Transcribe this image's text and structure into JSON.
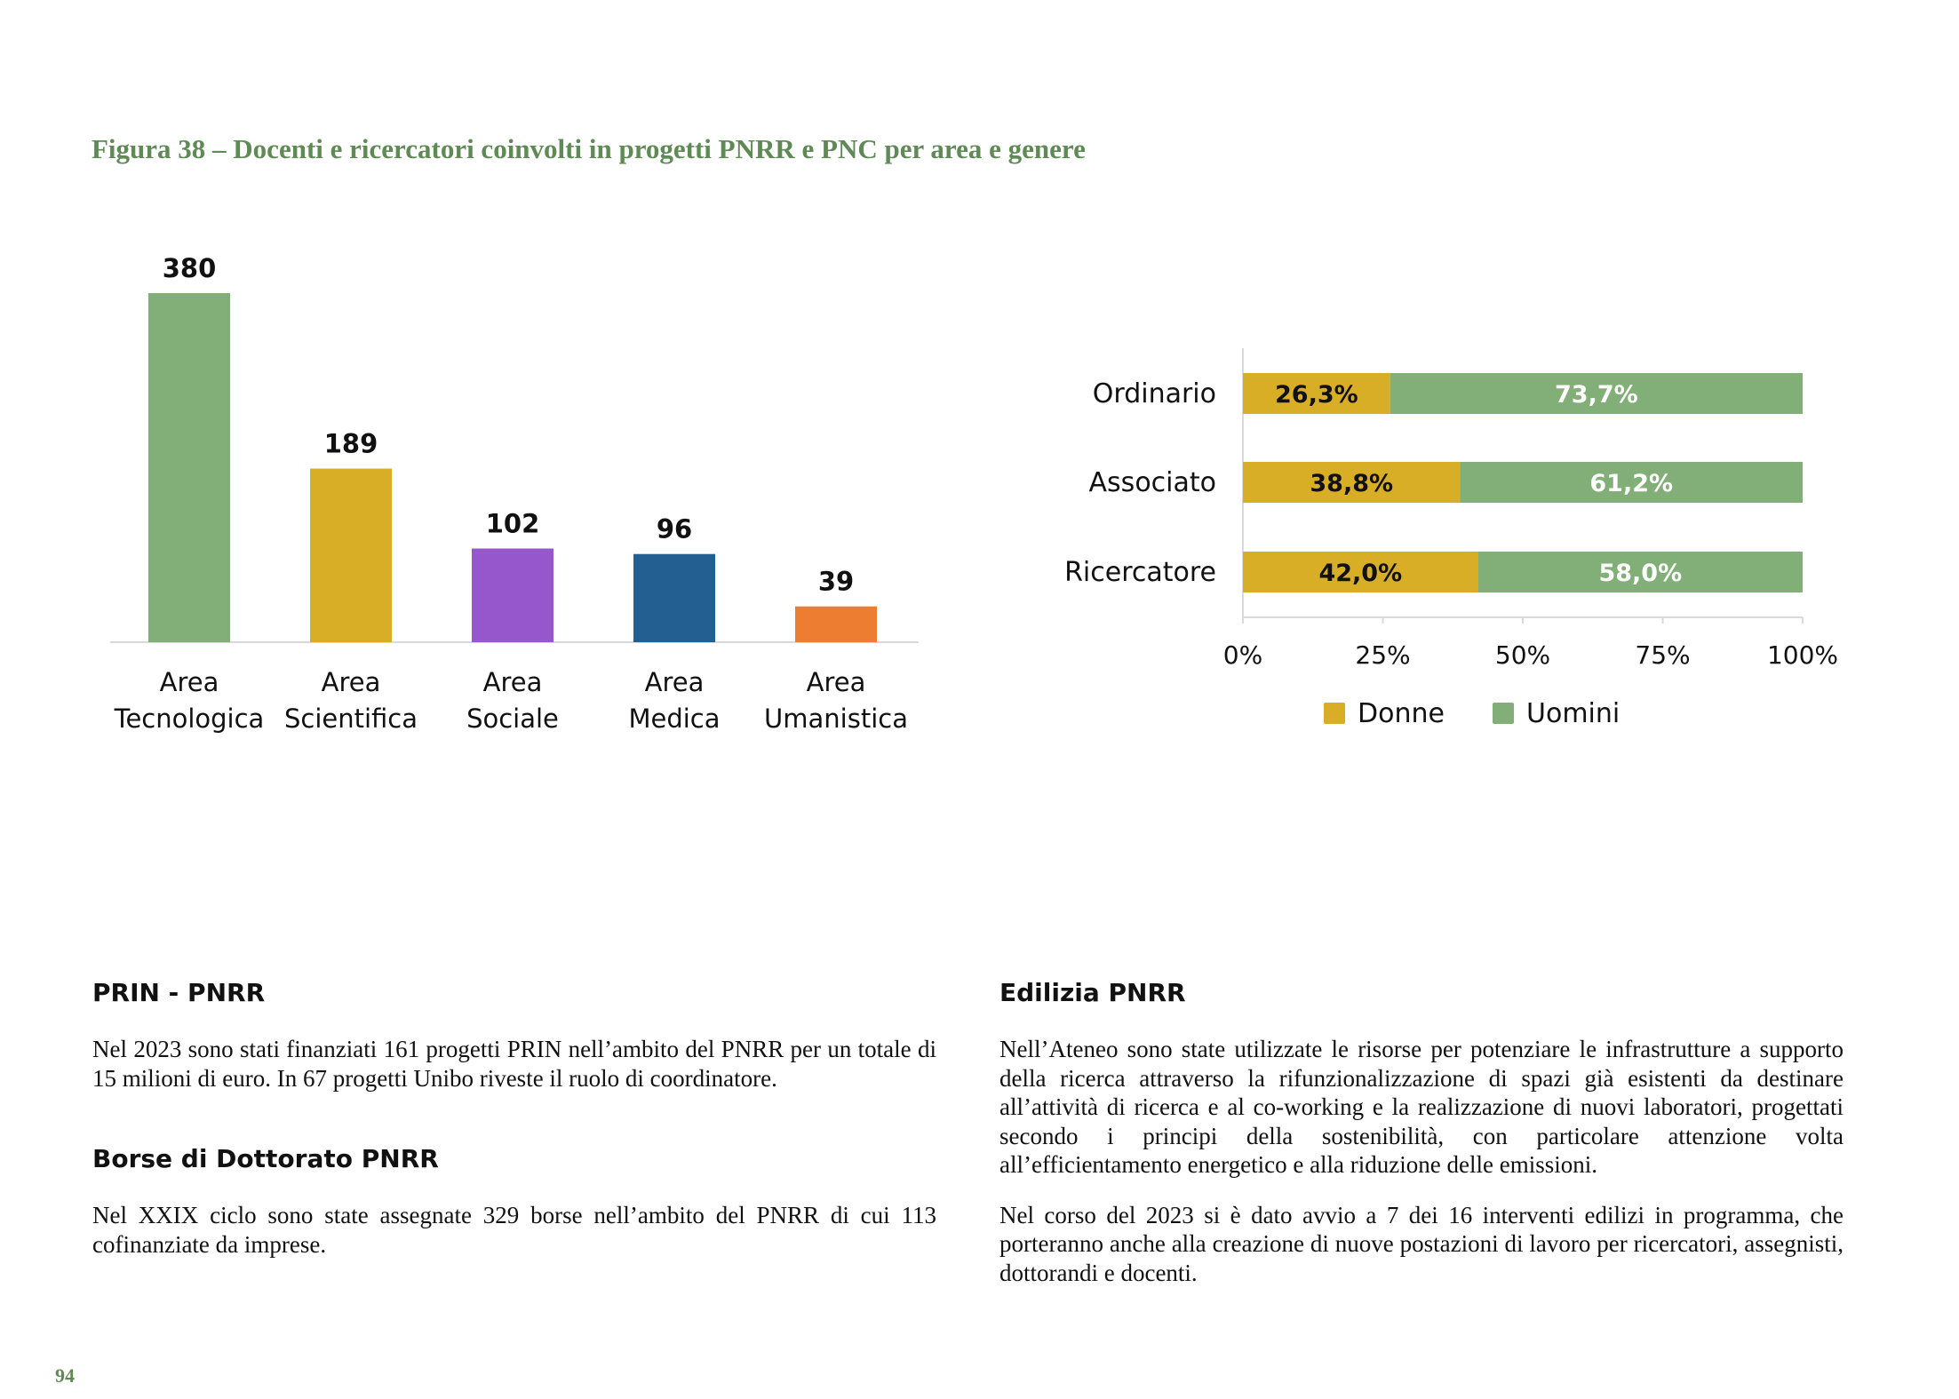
{
  "figure_title": "Figura 38 – Docenti e ricercatori coinvolti in progetti PNRR e PNC per area e genere",
  "chart_data": [
    {
      "type": "bar",
      "categories": [
        "Area Tecnologica",
        "Area Scientifica",
        "Area Sociale",
        "Area Medica",
        "Area Umanistica"
      ],
      "category_lines": [
        [
          "Area",
          "Tecnologica"
        ],
        [
          "Area",
          "Scientifica"
        ],
        [
          "Area",
          "Sociale"
        ],
        [
          "Area",
          "Medica"
        ],
        [
          "Area",
          "Umanistica"
        ]
      ],
      "values": [
        380,
        189,
        102,
        96,
        39
      ],
      "value_labels": [
        "380",
        "189",
        "102",
        "96",
        "39"
      ],
      "colors": [
        "#82ae77",
        "#d9ae27",
        "#9657cc",
        "#235f91",
        "#ed7d31"
      ],
      "ylim": [
        0,
        380
      ],
      "title": "",
      "xlabel": "",
      "ylabel": ""
    },
    {
      "type": "bar",
      "orientation": "horizontal",
      "stacked": "percent",
      "categories": [
        "Ordinario",
        "Associato",
        "Ricercatore"
      ],
      "series": [
        {
          "name": "Donne",
          "values": [
            26.3,
            38.8,
            42.0
          ],
          "labels": [
            "26,3%",
            "38,8%",
            "42,0%"
          ],
          "color": "#d9ae27",
          "label_color": "#111111"
        },
        {
          "name": "Uomini",
          "values": [
            73.7,
            61.2,
            58.0
          ],
          "labels": [
            "73,7%",
            "61,2%",
            "58,0%"
          ],
          "color": "#82ae77",
          "label_color": "#ffffff"
        }
      ],
      "xlim": [
        0,
        100
      ],
      "x_ticks": [
        0,
        25,
        50,
        75,
        100
      ],
      "x_tick_labels": [
        "0%",
        "25%",
        "50%",
        "75%",
        "100%"
      ],
      "legend": "bottom",
      "grid": false,
      "title": "",
      "xlabel": "",
      "ylabel": ""
    }
  ],
  "sections": {
    "prin": {
      "heading": "PRIN - PNRR",
      "text": "Nel 2023 sono stati finanziati 161 progetti PRIN nell’ambito del PNRR per un totale di 15 milioni di euro. In 67 progetti Unibo riveste il ruolo di coordinatore."
    },
    "borse": {
      "heading": "Borse di Dottorato PNRR",
      "text": "Nel XXIX ciclo sono state assegnate 329 borse nell’ambito del PNRR di cui 113 cofinanziate da imprese."
    },
    "edilizia": {
      "heading": "Edilizia PNRR",
      "paragraphs": [
        "Nell’Ateneo sono state utilizzate le risorse per potenziare le infrastrutture a supporto della ricerca attraverso la rifunzionalizzazione di spazi già esistenti da destinare all’attività di ricerca e al co-working e la realizzazione di nuovi laboratori, progettati secondo i principi della sostenibilità, con particolare attenzione volta all’efficientamento energetico e alla riduzione delle emissioni.",
        "Nel corso del 2023 si è dato avvio a 7 dei 16 interventi edilizi in programma, che porteranno anche alla creazione di nuove postazioni di lavoro per ricercatori, assegnisti, dottorandi e docenti."
      ]
    }
  },
  "page_number": "94"
}
